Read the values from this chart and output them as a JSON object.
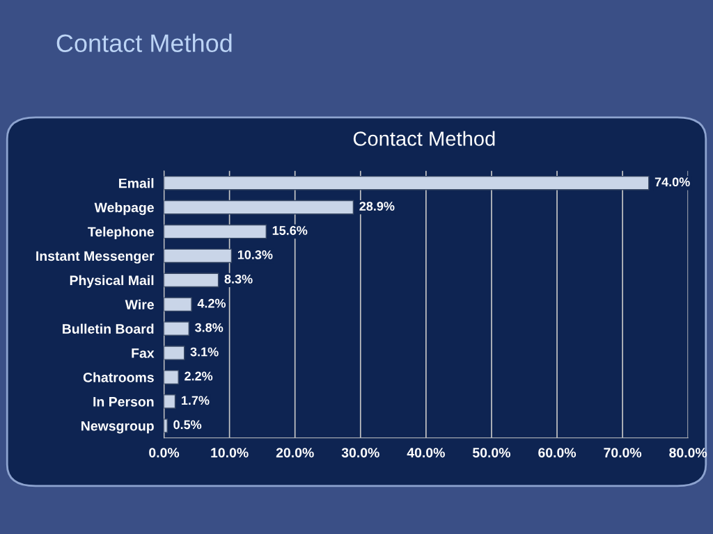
{
  "chart_data": {
    "type": "bar",
    "title": "Contact Method",
    "subtitle": "Contact Method",
    "orientation": "horizontal",
    "categories": [
      "Email",
      "Webpage",
      "Telephone",
      "Instant Messenger",
      "Physical Mail",
      "Wire",
      "Bulletin Board",
      "Fax",
      "Chatrooms",
      "In Person",
      "Newsgroup"
    ],
    "values": [
      74.0,
      28.9,
      15.6,
      10.3,
      8.3,
      4.2,
      3.8,
      3.1,
      2.2,
      1.7,
      0.5
    ],
    "value_labels": [
      "74.0%",
      "28.9%",
      "15.6%",
      "10.3%",
      "8.3%",
      "4.2%",
      "3.8%",
      "3.1%",
      "2.2%",
      "1.7%",
      "0.5%"
    ],
    "color": "#c9d5e8",
    "xlim": [
      0,
      80
    ],
    "xticks": [
      {
        "value": 0,
        "label": "0.0%"
      },
      {
        "value": 10,
        "label": "10.0%"
      },
      {
        "value": 20,
        "label": "20.0%"
      },
      {
        "value": 30,
        "label": "30.0%"
      },
      {
        "value": 40,
        "label": "40.0%"
      },
      {
        "value": 50,
        "label": "50.0%"
      },
      {
        "value": 60,
        "label": "60.0%"
      },
      {
        "value": 70,
        "label": "70.0%"
      },
      {
        "value": 80,
        "label": "80.0%"
      }
    ],
    "grid": "x"
  }
}
